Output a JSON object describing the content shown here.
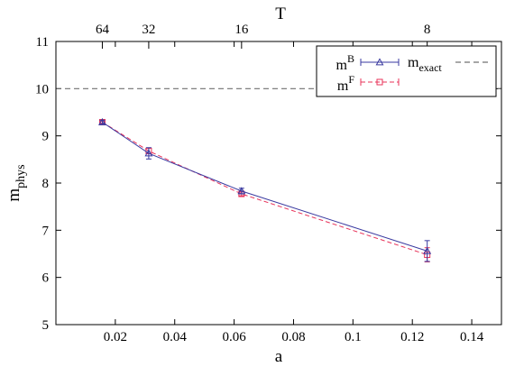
{
  "chart_data": {
    "type": "line",
    "xlabel": "a",
    "ylabel": {
      "main": "m",
      "sub": "phys"
    },
    "x2label": "T",
    "xlim": [
      0,
      0.15
    ],
    "ylim": [
      5,
      11
    ],
    "x_ticks": [
      0.02,
      0.04,
      0.06,
      0.08,
      0.1,
      0.12,
      0.14
    ],
    "x_tick_labels": [
      "0.02",
      "0.04",
      "0.06",
      "0.08",
      "0.1",
      "0.12",
      "0.14"
    ],
    "y_ticks": [
      5,
      6,
      7,
      8,
      9,
      10,
      11
    ],
    "y_tick_labels": [
      "5",
      "6",
      "7",
      "8",
      "9",
      "10",
      "11"
    ],
    "x2_ticks": [
      {
        "a": 0.015625,
        "label": "64"
      },
      {
        "a": 0.03125,
        "label": "32"
      },
      {
        "a": 0.0625,
        "label": "16"
      },
      {
        "a": 0.125,
        "label": "8"
      }
    ],
    "grid": false,
    "legend_position": "top-right",
    "series": [
      {
        "name": {
          "main": "m",
          "sup": "B"
        },
        "color": "#3a3aa0",
        "marker": "triangle",
        "line": "solid",
        "points": [
          {
            "x": 0.015625,
            "y": 9.29,
            "err": 0.04
          },
          {
            "x": 0.03125,
            "y": 8.63,
            "err": 0.12
          },
          {
            "x": 0.0625,
            "y": 7.83,
            "err": 0.06
          },
          {
            "x": 0.125,
            "y": 6.56,
            "err": 0.22
          }
        ]
      },
      {
        "name": {
          "main": "m",
          "sup": "F"
        },
        "color": "#e8335a",
        "marker": "square",
        "line": "dashed",
        "points": [
          {
            "x": 0.015625,
            "y": 9.29,
            "err": 0.02
          },
          {
            "x": 0.03125,
            "y": 8.68,
            "err": 0.06
          },
          {
            "x": 0.0625,
            "y": 7.77,
            "err": 0.04
          },
          {
            "x": 0.125,
            "y": 6.48,
            "err": 0.15
          }
        ]
      },
      {
        "name": {
          "main": "m",
          "sub": "exact"
        },
        "color": "#707070",
        "line": "dashed",
        "constant_y": 10
      }
    ]
  }
}
